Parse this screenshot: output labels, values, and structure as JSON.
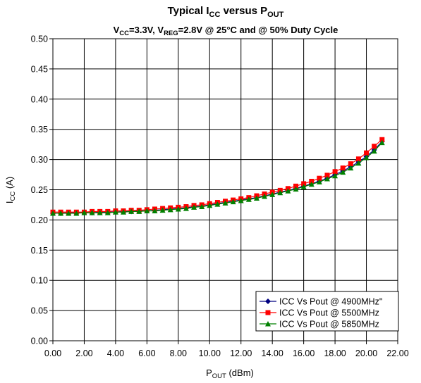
{
  "chart_data": {
    "type": "line",
    "title": {
      "line1": [
        "Typical I",
        "CC",
        " versus P",
        "OUT"
      ],
      "line2": [
        "V",
        "CC",
        "=3.3V, V",
        "REG",
        "=2.8V @ 25°C and @ 50% Duty Cycle"
      ]
    },
    "xlabel": [
      "P",
      "OUT",
      " (dBm)"
    ],
    "ylabel": [
      "I",
      "CC",
      " (A)"
    ],
    "xlim": [
      0,
      22
    ],
    "ylim": [
      0,
      0.5
    ],
    "x_ticks": [
      "0.00",
      "2.00",
      "4.00",
      "6.00",
      "8.00",
      "10.00",
      "12.00",
      "14.00",
      "16.00",
      "18.00",
      "20.00",
      "22.00"
    ],
    "y_ticks": [
      "0.00",
      "0.05",
      "0.10",
      "0.15",
      "0.20",
      "0.25",
      "0.30",
      "0.35",
      "0.40",
      "0.45",
      "0.50"
    ],
    "grid": true,
    "legend_position": "bottom-right",
    "x": [
      0,
      0.5,
      1,
      1.5,
      2,
      2.5,
      3,
      3.5,
      4,
      4.5,
      5,
      5.5,
      6,
      6.5,
      7,
      7.5,
      8,
      8.5,
      9,
      9.5,
      10,
      10.5,
      11,
      11.5,
      12,
      12.5,
      13,
      13.5,
      14,
      14.5,
      15,
      15.5,
      16,
      16.5,
      17,
      17.5,
      18,
      18.5,
      19,
      19.5,
      20,
      20.5,
      21
    ],
    "series": [
      {
        "name": "ICC Vs Pout @ 4900MHz\"",
        "color": "#000080",
        "marker": "diamond",
        "values": [
          0.211,
          0.211,
          0.212,
          0.212,
          0.212,
          0.212,
          0.213,
          0.213,
          0.213,
          0.214,
          0.214,
          0.215,
          0.215,
          0.216,
          0.217,
          0.218,
          0.219,
          0.22,
          0.222,
          0.223,
          0.225,
          0.227,
          0.229,
          0.231,
          0.233,
          0.235,
          0.237,
          0.24,
          0.243,
          0.246,
          0.249,
          0.252,
          0.256,
          0.26,
          0.264,
          0.269,
          0.275,
          0.281,
          0.288,
          0.296,
          0.305,
          0.316,
          0.33
        ]
      },
      {
        "name": "ICC Vs Pout @ 5500MHz",
        "color": "#ff0000",
        "marker": "square",
        "values": [
          0.213,
          0.213,
          0.213,
          0.213,
          0.213,
          0.214,
          0.214,
          0.214,
          0.215,
          0.215,
          0.216,
          0.216,
          0.217,
          0.218,
          0.219,
          0.22,
          0.221,
          0.222,
          0.224,
          0.225,
          0.227,
          0.229,
          0.231,
          0.233,
          0.235,
          0.237,
          0.24,
          0.243,
          0.246,
          0.249,
          0.252,
          0.256,
          0.26,
          0.264,
          0.269,
          0.274,
          0.28,
          0.286,
          0.293,
          0.301,
          0.311,
          0.322,
          0.333
        ]
      },
      {
        "name": "ICC Vs Pout @ 5850MHz",
        "color": "#008000",
        "marker": "triangle",
        "values": [
          0.211,
          0.211,
          0.211,
          0.211,
          0.212,
          0.212,
          0.212,
          0.212,
          0.213,
          0.213,
          0.214,
          0.214,
          0.215,
          0.215,
          0.216,
          0.217,
          0.218,
          0.219,
          0.221,
          0.222,
          0.224,
          0.226,
          0.228,
          0.23,
          0.232,
          0.234,
          0.236,
          0.239,
          0.242,
          0.245,
          0.248,
          0.251,
          0.255,
          0.259,
          0.263,
          0.268,
          0.273,
          0.279,
          0.286,
          0.294,
          0.303,
          0.314,
          0.328
        ]
      }
    ]
  }
}
